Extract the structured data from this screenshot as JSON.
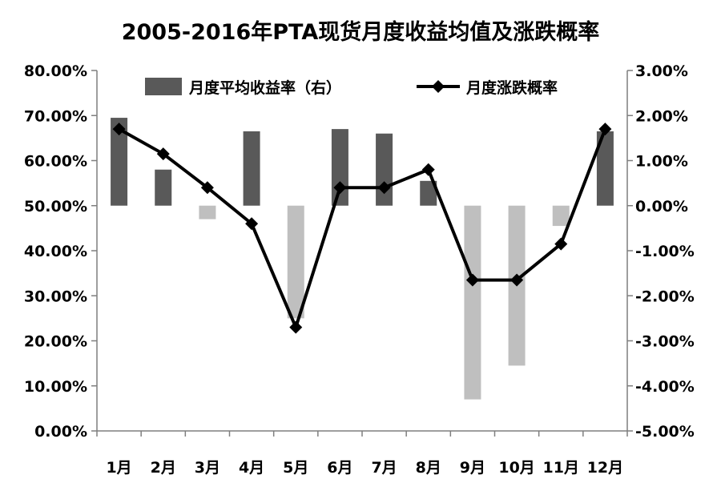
{
  "chart_data": {
    "type": "bar+line",
    "title": "2005-2016年PTA现货月度收益均值及涨跌概率",
    "categories": [
      "1月",
      "2月",
      "3月",
      "4月",
      "5月",
      "6月",
      "7月",
      "8月",
      "9月",
      "10月",
      "11月",
      "12月"
    ],
    "series": [
      {
        "name": "月度平均收益率（右）",
        "type": "bar",
        "axis": "right",
        "values": [
          1.95,
          0.8,
          -0.3,
          1.65,
          -2.5,
          1.7,
          1.6,
          0.55,
          -4.3,
          -3.55,
          -0.45,
          1.65
        ]
      },
      {
        "name": "月度涨跌概率",
        "type": "line",
        "axis": "left",
        "values": [
          67,
          61.5,
          54,
          46,
          23,
          54,
          54,
          58,
          33.5,
          33.5,
          41.5,
          67
        ]
      }
    ],
    "left_axis": {
      "ylim": [
        0,
        80
      ],
      "ticks": [
        "0.00%",
        "10.00%",
        "20.00%",
        "30.00%",
        "40.00%",
        "50.00%",
        "60.00%",
        "70.00%",
        "80.00%"
      ]
    },
    "right_axis": {
      "ylim": [
        -5,
        3
      ],
      "ticks": [
        "-5.00%",
        "-4.00%",
        "-3.00%",
        "-2.00%",
        "-1.00%",
        "0.00%",
        "1.00%",
        "2.00%",
        "3.00%"
      ]
    },
    "legend_position": "top",
    "grid": false,
    "colors": {
      "bar_positive": "#595959",
      "bar_negative": "#bfbfbf",
      "line": "#000000",
      "axis": "#7f7f7f"
    }
  }
}
